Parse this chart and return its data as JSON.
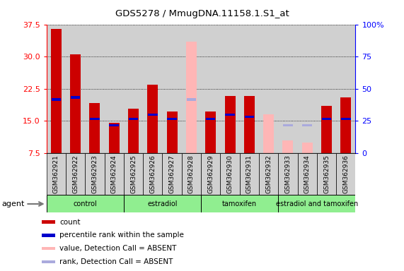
{
  "title": "GDS5278 / MmugDNA.11158.1.S1_at",
  "samples": [
    "GSM362921",
    "GSM362922",
    "GSM362923",
    "GSM362924",
    "GSM362925",
    "GSM362926",
    "GSM362927",
    "GSM362928",
    "GSM362929",
    "GSM362930",
    "GSM362931",
    "GSM362932",
    "GSM362933",
    "GSM362934",
    "GSM362935",
    "GSM362936"
  ],
  "count_values": [
    36.5,
    30.5,
    19.2,
    14.5,
    17.8,
    23.5,
    17.2,
    null,
    17.2,
    20.8,
    20.8,
    null,
    null,
    null,
    18.5,
    20.5
  ],
  "count_absent": [
    null,
    null,
    null,
    null,
    null,
    null,
    null,
    33.5,
    null,
    null,
    null,
    16.5,
    10.5,
    10.0,
    null,
    null
  ],
  "rank_values": [
    20.0,
    20.5,
    15.5,
    14.0,
    15.5,
    16.5,
    15.5,
    null,
    15.5,
    16.5,
    16.0,
    null,
    null,
    null,
    15.5,
    15.5
  ],
  "rank_absent": [
    null,
    null,
    null,
    null,
    null,
    null,
    null,
    20.0,
    null,
    null,
    null,
    null,
    14.0,
    14.0,
    null,
    null
  ],
  "groups": [
    {
      "label": "control",
      "start": 0,
      "end": 3
    },
    {
      "label": "estradiol",
      "start": 4,
      "end": 7
    },
    {
      "label": "tamoxifen",
      "start": 8,
      "end": 11
    },
    {
      "label": "estradiol and tamoxifen",
      "start": 12,
      "end": 15
    }
  ],
  "ylim_left": [
    7.5,
    37.5
  ],
  "yticks_left": [
    7.5,
    15.0,
    22.5,
    30.0,
    37.5
  ],
  "ylim_right": [
    0,
    100
  ],
  "yticks_right": [
    0,
    25,
    50,
    75,
    100
  ],
  "count_color": "#cc0000",
  "count_absent_color": "#ffb6b6",
  "rank_color": "#0000cc",
  "rank_absent_color": "#aaaadd",
  "col_bg_color": "#d0d0d0",
  "group_fill_color": "#90ee90",
  "bg_color": "#ffffff"
}
